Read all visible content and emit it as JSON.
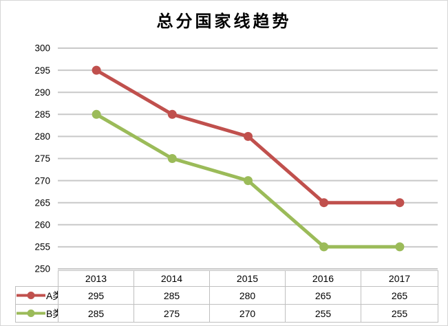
{
  "title": "总分国家线趋势",
  "colors": {
    "series_a": "#C0504D",
    "series_b": "#9BBB59",
    "gridline": "#C8C8C8",
    "table_border": "#BFBFBF",
    "text": "#000000"
  },
  "chart_data": {
    "type": "line",
    "title": "总分国家线趋势",
    "categories": [
      "2013",
      "2014",
      "2015",
      "2016",
      "2017"
    ],
    "series": [
      {
        "name": "A类",
        "color": "#C0504D",
        "values": [
          295,
          285,
          280,
          265,
          265
        ]
      },
      {
        "name": "B类",
        "color": "#9BBB59",
        "values": [
          285,
          275,
          270,
          255,
          255
        ]
      }
    ],
    "ylim": [
      250,
      300
    ],
    "ytick_step": 5,
    "yticks": [
      300,
      295,
      290,
      285,
      280,
      275,
      270,
      265,
      260,
      255,
      250
    ],
    "xlabel": "",
    "ylabel": "",
    "grid": true,
    "vertical_grid": false,
    "legend_position": "table-left",
    "data_table": true
  }
}
